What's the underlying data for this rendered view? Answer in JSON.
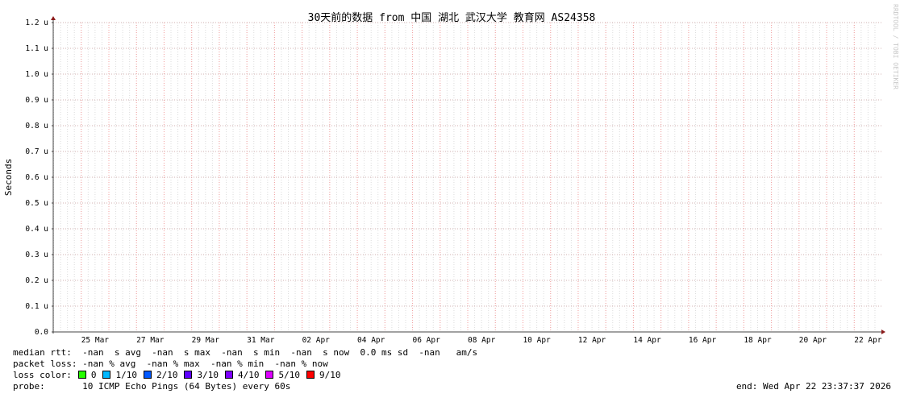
{
  "chart_data": {
    "type": "line",
    "title": "30天前的数据 from  中国 湖北 武汉大学 教育网 AS24358",
    "ylabel": "Seconds",
    "xlabel": "",
    "ylim": [
      0,
      1.2e-06
    ],
    "yticks": [
      "0.0",
      "0.1 u",
      "0.2 u",
      "0.3 u",
      "0.4 u",
      "0.5 u",
      "0.6 u",
      "0.7 u",
      "0.8 u",
      "0.9 u",
      "1.0 u",
      "1.1 u",
      "1.2 u"
    ],
    "xticks": [
      "25 Mar",
      "27 Mar",
      "29 Mar",
      "31 Mar",
      "02 Apr",
      "04 Apr",
      "06 Apr",
      "08 Apr",
      "10 Apr",
      "12 Apr",
      "14 Apr",
      "16 Apr",
      "18 Apr",
      "20 Apr",
      "22 Apr"
    ],
    "xrange": [
      "Mar 23 23:37:37 2026",
      "Apr 22 23:37:37 2026"
    ],
    "grid": true,
    "series": [],
    "watermark": "RRDTOOL / TOBI OETIKER"
  },
  "legend": {
    "median_rtt": "median rtt:  -nan  s avg  -nan  s max  -nan  s min  -nan  s now  0.0 ms sd  -nan   am/s",
    "packet_loss": "packet loss: -nan % avg  -nan % max  -nan % min  -nan % now",
    "loss_color_label": "loss color:",
    "loss_colors": [
      {
        "label": "0",
        "color": "#26ff00"
      },
      {
        "label": "1/10",
        "color": "#00b8ff"
      },
      {
        "label": "2/10",
        "color": "#0059ff"
      },
      {
        "label": "3/10",
        "color": "#5e00ff"
      },
      {
        "label": "4/10",
        "color": "#7e00ff"
      },
      {
        "label": "5/10",
        "color": "#dd00ff"
      },
      {
        "label": "9/10",
        "color": "#ff0000"
      }
    ],
    "probe": "probe:       10 ICMP Echo Pings (64 Bytes) every 60s",
    "end": "end: Wed Apr 22 23:37:37 2026"
  }
}
